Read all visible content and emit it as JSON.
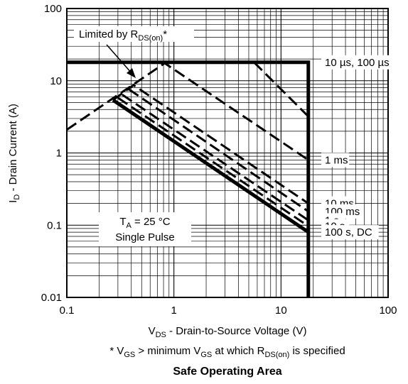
{
  "chart_data": {
    "type": "line",
    "title": "Safe Operating Area",
    "footnote": {
      "prefix": "* V",
      "sub1": "GS",
      "mid": " > minimum V",
      "sub2": "GS",
      "mid2": " at which R",
      "sub3": "DS(on)",
      "suffix": " is specified"
    },
    "xlabel": {
      "main": "V",
      "sub": "DS",
      "rest": " - Drain-to-Source Voltage (V)"
    },
    "ylabel": {
      "main": "I",
      "sub": "D",
      "rest": " - Drain Current (A)"
    },
    "x_scale": "log",
    "y_scale": "log",
    "xlim": [
      0.1,
      100
    ],
    "ylim": [
      0.01,
      100
    ],
    "x_ticks": [
      "0.1",
      "1",
      "10",
      "100"
    ],
    "y_ticks": [
      "0.01",
      "0.1",
      "1",
      "10",
      "100"
    ],
    "grid": true,
    "annotations": {
      "limited_main": "Limited by R",
      "limited_sub": "DS(on)",
      "limited_suffix": "*",
      "ta_main": "T",
      "ta_sub": "A",
      "ta_rest": " = 25 °C",
      "pulse": "Single Pulse"
    },
    "series": [
      {
        "name": "10 µs,  100 µs",
        "style": "solid-thick",
        "points": [
          [
            0.1,
            18
          ],
          [
            18,
            18
          ],
          [
            18,
            0.01
          ]
        ]
      },
      {
        "name": "1 ms",
        "style": "dashed",
        "points": [
          [
            0.1,
            2.1
          ],
          [
            0.82,
            17.5
          ],
          [
            18,
            0.8
          ]
        ]
      },
      {
        "name": "",
        "style": "dashed",
        "points": [
          [
            5.6,
            18
          ],
          [
            18,
            3.2
          ]
        ]
      },
      {
        "name": "10 ms",
        "style": "dashed",
        "points": [
          [
            0.27,
            5.4
          ],
          [
            0.42,
            8.7
          ],
          [
            18,
            0.2
          ]
        ]
      },
      {
        "name": "100 ms",
        "style": "dashed",
        "points": [
          [
            0.38,
            7.6
          ],
          [
            18,
            0.155
          ]
        ]
      },
      {
        "name": "1 s",
        "style": "dashed",
        "points": [
          [
            0.33,
            6.4
          ],
          [
            18,
            0.117
          ]
        ]
      },
      {
        "name": "10 s",
        "style": "dashed",
        "points": [
          [
            0.3,
            5.8
          ],
          [
            18,
            0.097
          ]
        ]
      },
      {
        "name": "100 s, DC",
        "style": "solid-thick",
        "points": [
          [
            0.27,
            5.4
          ],
          [
            18,
            0.08
          ]
        ]
      }
    ]
  }
}
